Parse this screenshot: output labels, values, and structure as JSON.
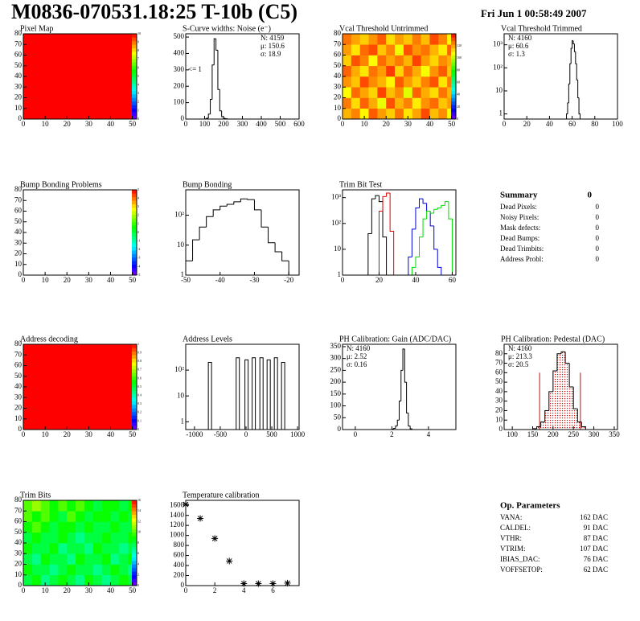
{
  "header": {
    "title": "M0836-070531.18:25 T-10b (C5)",
    "date": "Fri Jun  1 00:58:49 2007"
  },
  "summary": {
    "title": "Summary",
    "total": 0,
    "rows": [
      {
        "label": "Dead Pixels:",
        "value": 0
      },
      {
        "label": "Noisy Pixels:",
        "value": 0
      },
      {
        "label": "Mask defects:",
        "value": 0
      },
      {
        "label": "Dead Bumps:",
        "value": 0
      },
      {
        "label": "Dead Trimbits:",
        "value": 0
      },
      {
        "label": "Address Probl:",
        "value": 0
      }
    ]
  },
  "parameters": {
    "title": "Op. Parameters",
    "rows": [
      {
        "name": "VANA:",
        "value": "162 DAC"
      },
      {
        "name": "CALDEL:",
        "value": "91 DAC"
      },
      {
        "name": "VTHR:",
        "value": "87 DAC"
      },
      {
        "name": "VTRIM:",
        "value": "107 DAC"
      },
      {
        "name": "IBIAS_DAC:",
        "value": "76 DAC"
      },
      {
        "name": "VOFFSETOP:",
        "value": "62 DAC"
      }
    ]
  },
  "chart_data": [
    {
      "type": "heatmap",
      "title": "Pixel Map",
      "xlim": [
        0,
        52
      ],
      "ylim": [
        0,
        80
      ],
      "xticks": [
        0,
        10,
        20,
        30,
        40,
        50
      ],
      "yticks": [
        0,
        10,
        20,
        30,
        40,
        50,
        60,
        70,
        80
      ],
      "z": [
        [
          10
        ]
      ],
      "zlim": [
        0,
        10
      ],
      "zticks": [
        0,
        1,
        2,
        3,
        4,
        5,
        6,
        7,
        8,
        9,
        10
      ]
    },
    {
      "type": "histogram",
      "title": "S-Curve widths: Noise (e⁻)",
      "xlim": [
        0,
        600
      ],
      "ylim": [
        0,
        520
      ],
      "xticks": [
        0,
        100,
        200,
        300,
        400,
        500,
        600
      ],
      "yticks": [
        0,
        100,
        200,
        300,
        400,
        500
      ],
      "bins": [
        100,
        110,
        120,
        130,
        140,
        150,
        160,
        170,
        180,
        190,
        200,
        210,
        220
      ],
      "values": [
        1,
        5,
        30,
        120,
        330,
        490,
        420,
        180,
        50,
        15,
        5,
        2
      ],
      "color": "#000000",
      "stats": [
        "N: 4159",
        "μ: 150.6",
        "σ: 18.9"
      ],
      "stats_corner": "upper right",
      "annotation": "<= 1"
    },
    {
      "type": "heatmap",
      "title": "Vcal Threshold Untrimmed",
      "xlim": [
        0,
        52
      ],
      "ylim": [
        0,
        80
      ],
      "xticks": [
        0,
        10,
        20,
        30,
        40,
        50
      ],
      "yticks": [
        0,
        10,
        20,
        30,
        40,
        50,
        60,
        70,
        80
      ],
      "z": [
        [
          118,
          124,
          110,
          129,
          121,
          115,
          126,
          112,
          120,
          131,
          117,
          123,
          108
        ],
        [
          125,
          113,
          128,
          119,
          106,
          130,
          118,
          124,
          111,
          122,
          127,
          116,
          121
        ],
        [
          109,
          127,
          120,
          114,
          132,
          117,
          123,
          105,
          128,
          119,
          113,
          126,
          118
        ],
        [
          122,
          116,
          131,
          123,
          118,
          110,
          129,
          121,
          115,
          124,
          130,
          112,
          125
        ],
        [
          128,
          119,
          112,
          126,
          121,
          133,
          114,
          127,
          119,
          108,
          122,
          129,
          116
        ],
        [
          115,
          130,
          124,
          109,
          127,
          120,
          125,
          118,
          132,
          121,
          114,
          123,
          119
        ],
        [
          121,
          112,
          127,
          131,
          116,
          124,
          107,
          130,
          122,
          126,
          118,
          111,
          128
        ],
        [
          126,
          120,
          115,
          122,
          129,
          113,
          121,
          116,
          125,
          117,
          131,
          124,
          110
        ]
      ],
      "zlim": [
        0,
        140
      ],
      "zticks": [
        0,
        20,
        40,
        60,
        80,
        100,
        120
      ]
    },
    {
      "type": "histogram",
      "title": "Vcal Threshold Trimmed",
      "log_y": true,
      "xlim": [
        0,
        100
      ],
      "ylim": [
        0.6,
        3000
      ],
      "xticks": [
        0,
        20,
        40,
        60,
        80,
        100
      ],
      "yticks": [
        1,
        10,
        {
          "value": 100,
          "label": "10²"
        },
        {
          "value": 1000,
          "label": "10³"
        }
      ],
      "bins": [
        55,
        56,
        57,
        58,
        59,
        60,
        61,
        62,
        63,
        64,
        65,
        66,
        67
      ],
      "values": [
        1,
        3,
        20,
        150,
        700,
        1500,
        1100,
        500,
        150,
        30,
        5,
        1
      ],
      "color": "#000000",
      "stats": [
        "N: 4160",
        "μ: 60.6",
        "σ: 1.3"
      ],
      "stats_corner": "upper left"
    },
    {
      "type": "heatmap",
      "title": "Bump Bonding Problems",
      "xlim": [
        0,
        52
      ],
      "ylim": [
        0,
        80
      ],
      "xticks": [
        0,
        10,
        20,
        30,
        40,
        50
      ],
      "yticks": [
        0,
        10,
        20,
        30,
        40,
        50,
        60,
        70,
        80
      ],
      "z": [],
      "zlim": [
        -5,
        5
      ],
      "zticks": [
        -5,
        -4,
        -3,
        -2,
        -1,
        0,
        1,
        2,
        3,
        4,
        5
      ]
    },
    {
      "type": "histogram",
      "title": "Bump Bonding",
      "log_y": true,
      "xlim": [
        -50,
        -17
      ],
      "ylim": [
        1,
        700
      ],
      "xticks": [
        -50,
        -40,
        -30,
        -20
      ],
      "yticks": [
        1,
        10,
        {
          "value": 100,
          "label": "10²"
        }
      ],
      "bins": [
        -50,
        -48,
        -46,
        -44,
        -42,
        -40,
        -38,
        -36,
        -34,
        -32,
        -30,
        -28,
        -26,
        -24,
        -22,
        -20,
        -18
      ],
      "values": [
        3,
        15,
        40,
        90,
        150,
        200,
        230,
        280,
        350,
        330,
        150,
        40,
        12,
        6,
        3,
        1
      ],
      "color": "#000000"
    },
    {
      "type": "multi-histogram",
      "title": "Trim Bit Test",
      "log_y": true,
      "xlim": [
        0,
        62
      ],
      "ylim": [
        1,
        2000
      ],
      "xticks": [
        0,
        20,
        40,
        60
      ],
      "yticks": [
        1,
        10,
        {
          "value": 100,
          "label": "10²"
        },
        {
          "value": 1000,
          "label": "10³"
        }
      ],
      "series": [
        {
          "color": "#000000",
          "bins": [
            14,
            16,
            18,
            20,
            22,
            24
          ],
          "values": [
            40,
            900,
            1200,
            700,
            30
          ]
        },
        {
          "color": "#e00000",
          "bins": [
            20,
            22,
            24,
            26,
            28
          ],
          "values": [
            300,
            1100,
            1500,
            50
          ]
        },
        {
          "color": "#0000dd",
          "bins": [
            36,
            38,
            40,
            42,
            44,
            46,
            48,
            50,
            52,
            54
          ],
          "values": [
            5,
            60,
            400,
            900,
            600,
            300,
            80,
            10,
            2
          ]
        },
        {
          "color": "#00dd00",
          "bins": [
            38,
            40,
            42,
            44,
            46,
            48,
            50,
            52,
            54,
            56,
            58,
            60
          ],
          "values": [
            2,
            5,
            30,
            150,
            300,
            250,
            350,
            400,
            500,
            700,
            150
          ]
        }
      ]
    },
    {
      "type": "heatmap",
      "title": "Address decoding",
      "xlim": [
        0,
        52
      ],
      "ylim": [
        0,
        80
      ],
      "xticks": [
        0,
        10,
        20,
        30,
        40,
        50
      ],
      "yticks": [
        0,
        10,
        20,
        30,
        40,
        50,
        60,
        70,
        80
      ],
      "z": [
        [
          1
        ]
      ],
      "zlim": [
        0,
        1
      ],
      "zticks": [
        0,
        0.1,
        0.2,
        0.3,
        0.4,
        0.5,
        0.6,
        0.7,
        0.8,
        0.9,
        1
      ]
    },
    {
      "type": "spikes",
      "title": "Address Levels",
      "log_y": true,
      "xlim": [
        -1170,
        1030
      ],
      "ylim": [
        0.5,
        1000
      ],
      "xticks": [
        -1000,
        -500,
        0,
        500,
        1000
      ],
      "yticks": [
        1,
        10,
        {
          "value": 100,
          "label": "10²"
        }
      ],
      "x": [
        -700,
        -160,
        10,
        150,
        300,
        440,
        580,
        720
      ],
      "values": [
        200,
        300,
        250,
        300,
        300,
        250,
        300,
        200
      ],
      "color": "#000000"
    },
    {
      "type": "histogram",
      "title": "PH Calibration: Gain (ADC/DAC)",
      "xlim": [
        -0.7,
        5.5
      ],
      "ylim": [
        0,
        360
      ],
      "xticks": [
        0,
        2,
        4
      ],
      "yticks": [
        0,
        50,
        100,
        150,
        200,
        250,
        300,
        350
      ],
      "bins": [
        2.0,
        2.1,
        2.2,
        2.3,
        2.4,
        2.5,
        2.6,
        2.7,
        2.8,
        2.9,
        3.0,
        3.1
      ],
      "values": [
        2,
        5,
        15,
        40,
        120,
        250,
        340,
        200,
        70,
        15,
        3
      ],
      "color": "#000000",
      "stats": [
        "N: 4160",
        "μ: 2.52",
        "σ: 0.16"
      ],
      "stats_corner": "upper left"
    },
    {
      "type": "histogram",
      "title": "PH Calibration: Pedestal (DAC)",
      "xlim": [
        80,
        358
      ],
      "ylim": [
        0,
        90
      ],
      "xticks": [
        100,
        150,
        200,
        250,
        300,
        350
      ],
      "yticks": [
        0,
        10,
        20,
        30,
        40,
        50,
        60,
        70,
        80
      ],
      "bins": [
        150,
        160,
        170,
        180,
        190,
        200,
        210,
        220,
        230,
        240,
        250,
        260,
        270,
        280
      ],
      "values": [
        1,
        3,
        8,
        20,
        40,
        62,
        80,
        82,
        70,
        45,
        22,
        8,
        3
      ],
      "color": "#000000",
      "fill_color": "#e00000",
      "cut_lines": [
        167,
        267
      ],
      "cut_height": 60,
      "stats": [
        "N: 4160",
        "μ: 213.3",
        "σ: 20.5"
      ],
      "stats_colors": [
        "#000000",
        "#e00000",
        "#e00000"
      ],
      "stats_corner": "upper left"
    },
    {
      "type": "heatmap",
      "title": "Trim Bits",
      "xlim": [
        0,
        52
      ],
      "ylim": [
        0,
        80
      ],
      "xticks": [
        0,
        10,
        20,
        30,
        40,
        50
      ],
      "yticks": [
        0,
        10,
        20,
        30,
        40,
        50,
        60,
        70,
        80
      ],
      "z": [
        [
          8,
          9,
          7,
          8,
          9,
          8,
          7,
          9,
          8,
          7,
          8,
          9,
          8
        ],
        [
          9,
          8,
          8,
          7,
          8,
          9,
          8,
          8,
          7,
          8,
          9,
          8,
          7
        ],
        [
          8,
          7,
          9,
          8,
          8,
          7,
          9,
          8,
          8,
          9,
          7,
          8,
          9
        ],
        [
          9,
          8,
          8,
          9,
          7,
          8,
          8,
          7,
          9,
          8,
          8,
          7,
          8
        ],
        [
          8,
          9,
          8,
          8,
          9,
          8,
          7,
          8,
          8,
          9,
          8,
          8,
          9
        ],
        [
          9,
          10,
          9,
          8,
          9,
          9,
          8,
          9,
          8,
          8,
          9,
          8,
          8
        ],
        [
          10,
          9,
          10,
          9,
          8,
          10,
          9,
          8,
          9,
          9,
          8,
          9,
          8
        ],
        [
          10,
          11,
          10,
          9,
          10,
          9,
          10,
          9,
          8,
          9,
          9,
          8,
          9
        ]
      ],
      "zlim": [
        0,
        16
      ],
      "zticks": [
        0,
        2,
        4,
        6,
        8,
        10,
        12,
        14,
        16
      ]
    },
    {
      "type": "scatter",
      "title": "Temperature calibration",
      "xlim": [
        0,
        7.8
      ],
      "ylim": [
        0,
        1700
      ],
      "xticks": [
        0,
        2,
        4,
        6
      ],
      "yticks": [
        0,
        200,
        400,
        600,
        800,
        1000,
        1200,
        1400,
        1600
      ],
      "x": [
        0,
        1,
        2,
        3,
        4,
        5,
        6,
        7
      ],
      "values": [
        1620,
        1340,
        940,
        490,
        40,
        40,
        40,
        50
      ],
      "color": "#000000"
    }
  ]
}
